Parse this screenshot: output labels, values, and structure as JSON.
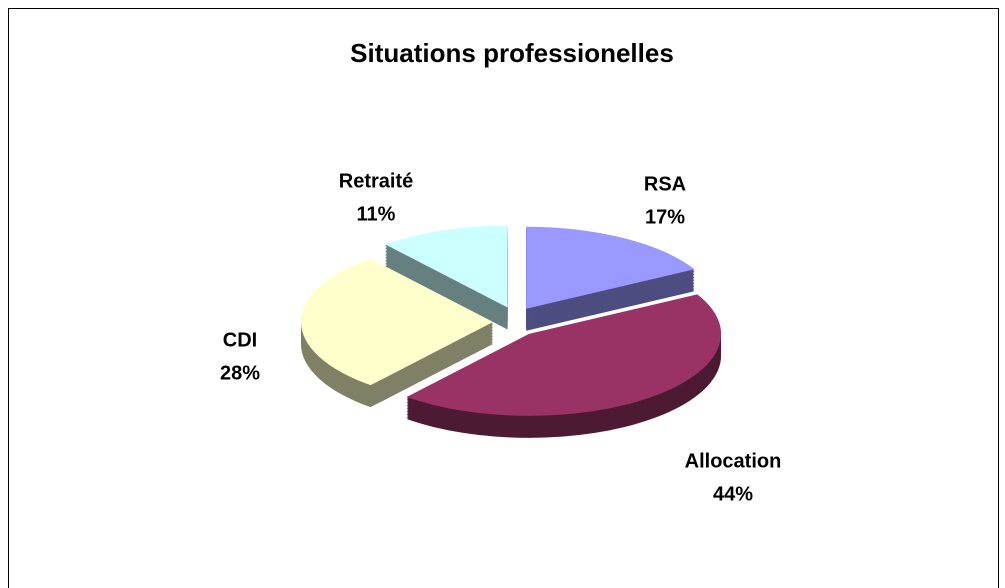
{
  "chart_data": {
    "type": "pie",
    "title": "Situations professionelles",
    "categories": [
      "RSA",
      "Allocation",
      "CDI",
      "Retraité"
    ],
    "values": [
      17,
      44,
      28,
      11
    ],
    "value_labels": [
      "17%",
      "44%",
      "28%",
      "11%"
    ],
    "colors": [
      "#9999ff",
      "#993366",
      "#ffffcc",
      "#ccffff"
    ]
  }
}
